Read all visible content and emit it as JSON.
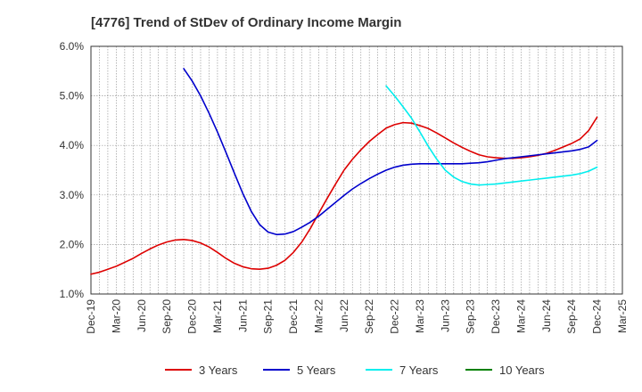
{
  "chart_data": {
    "type": "line",
    "title": "[4776]  Trend of StDev of Ordinary Income Margin",
    "xlabel": "",
    "ylabel": "",
    "x_ticks": [
      "Dec-19",
      "Mar-20",
      "Jun-20",
      "Sep-20",
      "Dec-20",
      "Mar-21",
      "Jun-21",
      "Sep-21",
      "Dec-21",
      "Mar-22",
      "Jun-22",
      "Sep-22",
      "Dec-22",
      "Mar-23",
      "Jun-23",
      "Sep-23",
      "Dec-23",
      "Mar-24",
      "Jun-24",
      "Sep-24",
      "Dec-24",
      "Mar-25"
    ],
    "y_ticks": [
      "1.0%",
      "2.0%",
      "3.0%",
      "4.0%",
      "5.0%",
      "6.0%"
    ],
    "ylim": [
      1.0,
      6.0
    ],
    "grid": true,
    "legend_position": "bottom",
    "series": [
      {
        "name": "3 Years",
        "color": "#dd0000",
        "x": [
          "Dec-19",
          "Jan-20",
          "Feb-20",
          "Mar-20",
          "Apr-20",
          "May-20",
          "Jun-20",
          "Jul-20",
          "Aug-20",
          "Sep-20",
          "Oct-20",
          "Nov-20",
          "Dec-20",
          "Jan-21",
          "Feb-21",
          "Mar-21",
          "Apr-21",
          "May-21",
          "Jun-21",
          "Jul-21",
          "Aug-21",
          "Sep-21",
          "Oct-21",
          "Nov-21",
          "Dec-21",
          "Jan-22",
          "Feb-22",
          "Mar-22",
          "Apr-22",
          "May-22",
          "Jun-22",
          "Jul-22",
          "Aug-22",
          "Sep-22",
          "Oct-22",
          "Nov-22",
          "Dec-22",
          "Jan-23",
          "Feb-23",
          "Mar-23",
          "Apr-23",
          "May-23",
          "Jun-23",
          "Jul-23",
          "Aug-23",
          "Sep-23",
          "Oct-23",
          "Nov-23",
          "Dec-23",
          "Jan-24",
          "Feb-24",
          "Mar-24",
          "Apr-24",
          "May-24",
          "Jun-24",
          "Jul-24",
          "Aug-24",
          "Sep-24",
          "Oct-24",
          "Nov-24",
          "Dec-24"
        ],
        "values": [
          1.4,
          1.44,
          1.5,
          1.56,
          1.64,
          1.72,
          1.82,
          1.91,
          1.99,
          2.05,
          2.09,
          2.1,
          2.08,
          2.03,
          1.95,
          1.84,
          1.72,
          1.62,
          1.55,
          1.51,
          1.5,
          1.52,
          1.58,
          1.68,
          1.84,
          2.05,
          2.32,
          2.63,
          2.93,
          3.22,
          3.5,
          3.72,
          3.91,
          4.08,
          4.22,
          4.35,
          4.42,
          4.46,
          4.45,
          4.4,
          4.34,
          4.25,
          4.15,
          4.05,
          3.96,
          3.88,
          3.81,
          3.77,
          3.75,
          3.74,
          3.74,
          3.75,
          3.77,
          3.8,
          3.84,
          3.9,
          3.97,
          4.04,
          4.13,
          4.3,
          4.57
        ]
      },
      {
        "name": "5 Years",
        "color": "#0000cc",
        "x": [
          "Nov-20",
          "Dec-20",
          "Jan-21",
          "Feb-21",
          "Mar-21",
          "Apr-21",
          "May-21",
          "Jun-21",
          "Jul-21",
          "Aug-21",
          "Sep-21",
          "Oct-21",
          "Nov-21",
          "Dec-21",
          "Jan-22",
          "Feb-22",
          "Mar-22",
          "Apr-22",
          "May-22",
          "Jun-22",
          "Jul-22",
          "Aug-22",
          "Sep-22",
          "Oct-22",
          "Nov-22",
          "Dec-22",
          "Jan-23",
          "Feb-23",
          "Mar-23",
          "Apr-23",
          "May-23",
          "Jun-23",
          "Jul-23",
          "Aug-23",
          "Sep-23",
          "Oct-23",
          "Nov-23",
          "Dec-23",
          "Jan-24",
          "Feb-24",
          "Mar-24",
          "Apr-24",
          "May-24",
          "Jun-24",
          "Jul-24",
          "Aug-24",
          "Sep-24",
          "Oct-24",
          "Nov-24",
          "Dec-24"
        ],
        "values": [
          5.55,
          5.3,
          5.0,
          4.65,
          4.27,
          3.86,
          3.44,
          3.03,
          2.67,
          2.4,
          2.25,
          2.2,
          2.21,
          2.26,
          2.35,
          2.45,
          2.57,
          2.71,
          2.85,
          2.99,
          3.12,
          3.23,
          3.33,
          3.42,
          3.5,
          3.56,
          3.6,
          3.62,
          3.63,
          3.63,
          3.63,
          3.63,
          3.63,
          3.63,
          3.64,
          3.65,
          3.67,
          3.7,
          3.73,
          3.75,
          3.77,
          3.79,
          3.81,
          3.83,
          3.85,
          3.87,
          3.89,
          3.92,
          3.97,
          4.1
        ]
      },
      {
        "name": "7 Years",
        "color": "#00eeee",
        "x": [
          "Nov-22",
          "Dec-22",
          "Jan-23",
          "Feb-23",
          "Mar-23",
          "Apr-23",
          "May-23",
          "Jun-23",
          "Jul-23",
          "Aug-23",
          "Sep-23",
          "Oct-23",
          "Nov-23",
          "Dec-23",
          "Jan-24",
          "Feb-24",
          "Mar-24",
          "Apr-24",
          "May-24",
          "Jun-24",
          "Jul-24",
          "Aug-24",
          "Sep-24",
          "Oct-24",
          "Nov-24",
          "Dec-24"
        ],
        "values": [
          5.2,
          5.0,
          4.78,
          4.55,
          4.27,
          3.98,
          3.72,
          3.5,
          3.36,
          3.27,
          3.22,
          3.2,
          3.21,
          3.22,
          3.24,
          3.26,
          3.28,
          3.3,
          3.32,
          3.34,
          3.36,
          3.38,
          3.4,
          3.43,
          3.48,
          3.56
        ]
      },
      {
        "name": "10 Years",
        "color": "#008000",
        "x": [],
        "values": []
      }
    ]
  }
}
